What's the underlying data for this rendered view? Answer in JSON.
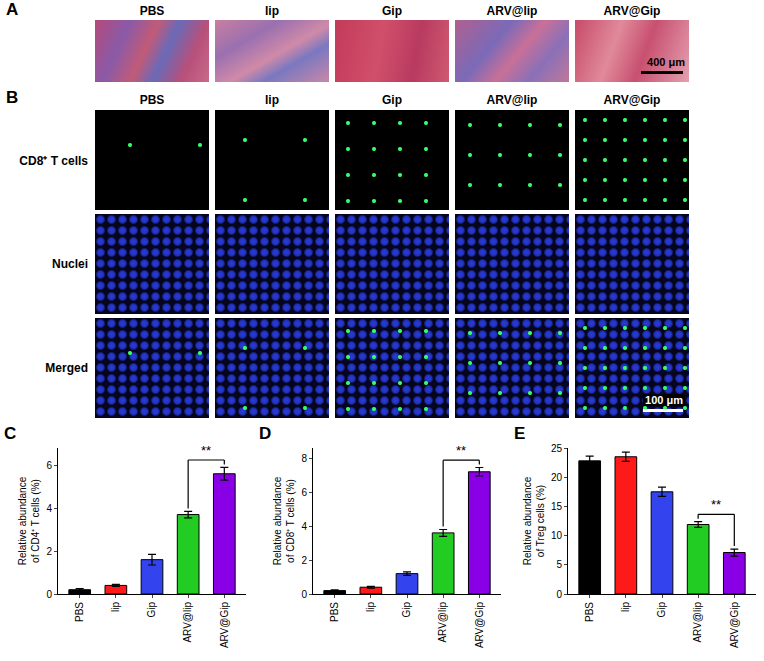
{
  "image_panels": [
    {
      "letter": "A",
      "columns": [
        "PBS",
        "lip",
        "Gip",
        "ARV@lip",
        "ARV@Gip"
      ],
      "scale_bar": "400 μm"
    },
    {
      "letter": "B",
      "columns": [
        "PBS",
        "lip",
        "Gip",
        "ARV@lip",
        "ARV@Gip"
      ],
      "rows": [
        "CD8⁺ T cells",
        "Nuclei",
        "Merged"
      ],
      "scale_bar": "100 μm"
    }
  ],
  "chart_data": [
    {
      "type": "bar",
      "panel_label": "C",
      "ylabel": "Relative abundance of CD4⁺ T cells (%)",
      "categories": [
        "PBS",
        "lip",
        "Gip",
        "ARV@lip",
        "ARV@Gip"
      ],
      "values": [
        0.2,
        0.4,
        1.6,
        3.7,
        5.6
      ],
      "errors": [
        0.05,
        0.05,
        0.25,
        0.15,
        0.3
      ],
      "colors": [
        "#000000",
        "#ff1a1a",
        "#3344ee",
        "#22cc22",
        "#8a00e6"
      ],
      "ylim": [
        0,
        6.8
      ],
      "yticks": [
        0,
        2,
        4,
        6
      ],
      "grid": false,
      "annotations": [
        {
          "text": "**",
          "from": "ARV@lip",
          "to": "ARV@Gip"
        }
      ]
    },
    {
      "type": "bar",
      "panel_label": "D",
      "ylabel": "Relative abundance of CD8⁺ T cells (%)",
      "categories": [
        "PBS",
        "lip",
        "Gip",
        "ARV@lip",
        "ARV@Gip"
      ],
      "values": [
        0.2,
        0.4,
        1.2,
        3.6,
        7.2
      ],
      "errors": [
        0.05,
        0.05,
        0.1,
        0.2,
        0.25
      ],
      "colors": [
        "#000000",
        "#ff1a1a",
        "#3344ee",
        "#22cc22",
        "#8a00e6"
      ],
      "ylim": [
        0,
        8.6
      ],
      "yticks": [
        0,
        2,
        4,
        6,
        8
      ],
      "grid": false,
      "annotations": [
        {
          "text": "**",
          "from": "ARV@lip",
          "to": "ARV@Gip"
        }
      ]
    },
    {
      "type": "bar",
      "panel_label": "E",
      "ylabel": "Relative abundance of Treg cells (%)",
      "categories": [
        "PBS",
        "lip",
        "Gip",
        "ARV@lip",
        "ARV@Gip"
      ],
      "values": [
        22.8,
        23.5,
        17.5,
        11.9,
        7.1
      ],
      "errors": [
        0.8,
        0.8,
        0.8,
        0.5,
        0.6
      ],
      "colors": [
        "#000000",
        "#ff1a1a",
        "#3344ee",
        "#22cc22",
        "#8a00e6"
      ],
      "ylim": [
        0,
        25
      ],
      "yticks": [
        0,
        5,
        10,
        15,
        20,
        25
      ],
      "grid": false,
      "annotations": [
        {
          "text": "**",
          "from": "ARV@lip",
          "to": "ARV@Gip"
        }
      ]
    }
  ]
}
